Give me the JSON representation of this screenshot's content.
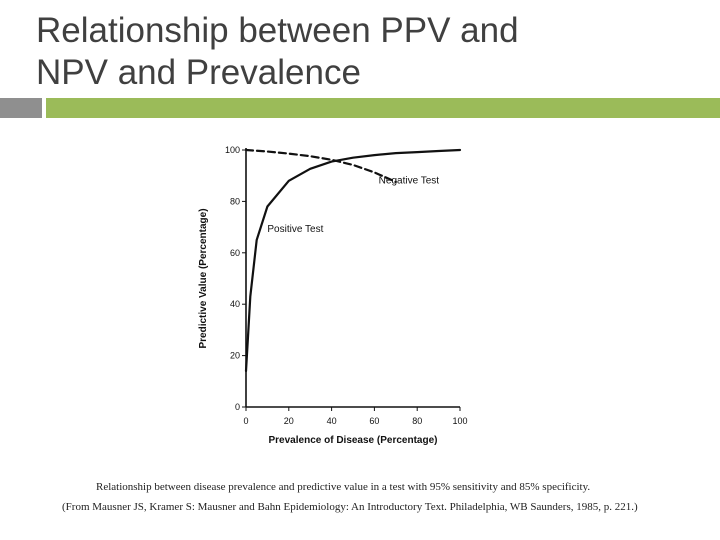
{
  "slide": {
    "title": "Relationship between PPV and\nNPV and Prevalence",
    "accent_gray": "#8f8f8f",
    "accent_green": "#9bbb59"
  },
  "chart_data": {
    "type": "line",
    "xlabel": "Prevalence of Disease (Percentage)",
    "ylabel": "Predictive Value (Percentage)",
    "xlim": [
      0,
      100
    ],
    "ylim": [
      0,
      100
    ],
    "xticks": [
      0,
      20,
      40,
      60,
      80,
      100
    ],
    "yticks": [
      0,
      20,
      40,
      60,
      80,
      100
    ],
    "grid": false,
    "series": [
      {
        "name": "Negative Test",
        "style": "dashed",
        "x": [
          0,
          10,
          20,
          30,
          40,
          50,
          60,
          70
        ],
        "y": [
          100,
          99.4,
          98.6,
          97.6,
          96.2,
          94.2,
          91.3,
          87.6
        ]
      },
      {
        "name": "Positive Test",
        "style": "solid",
        "x": [
          0,
          1,
          2,
          5,
          10,
          20,
          30,
          40,
          50,
          60,
          70,
          80,
          90,
          100
        ],
        "y": [
          14,
          28,
          43,
          65,
          78,
          88,
          92.7,
          95.5,
          97,
          98,
          98.8,
          99.2,
          99.6,
          100
        ]
      }
    ]
  },
  "caption": "Relationship between disease prevalence and predictive value in a test with 95% sensitivity and 85% specificity.",
  "citation": "(From Mausner JS, Kramer S: Mausner and Bahn Epidemiology: An Introductory Text. Philadelphia, WB Saunders, 1985, p. 221.)"
}
